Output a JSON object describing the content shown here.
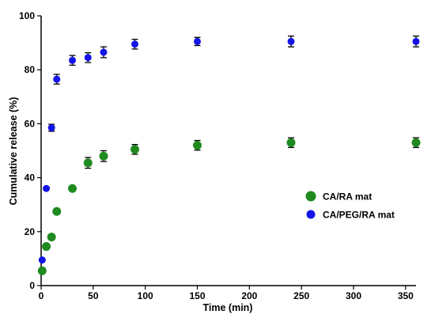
{
  "chart_data": {
    "type": "scatter",
    "xlabel": "Time (min)",
    "ylabel": "Cumulative release (%)",
    "xlim": [
      0,
      360
    ],
    "ylim": [
      0,
      100
    ],
    "x_ticks": [
      0,
      50,
      100,
      150,
      200,
      250,
      300,
      350
    ],
    "y_ticks": [
      0,
      20,
      40,
      60,
      80,
      100
    ],
    "x_tick_labels": [
      "0",
      "50",
      "100",
      "150",
      "200",
      "250",
      "300",
      "350"
    ],
    "y_tick_labels": [
      "0",
      "20",
      "40",
      "60",
      "80",
      "100"
    ],
    "grid": false,
    "legend_position": "right",
    "series": [
      {
        "name": "CA/RA mat",
        "color": "#1f8a1f",
        "x": [
          1,
          5,
          10,
          15,
          30,
          45,
          60,
          90,
          150,
          240,
          360
        ],
        "y": [
          5.5,
          14.5,
          18,
          27.5,
          36,
          45.5,
          48,
          50.5,
          52,
          53,
          53
        ],
        "err": [
          0,
          0,
          0,
          0,
          0,
          2,
          2,
          1.8,
          1.8,
          1.8,
          1.8
        ]
      },
      {
        "name": "CA/PEG/RA mat",
        "color": "#1414e6",
        "x": [
          1,
          5,
          10,
          15,
          30,
          45,
          60,
          90,
          150,
          240,
          360
        ],
        "y": [
          9.5,
          36,
          58.5,
          76.5,
          83.5,
          84.5,
          86.5,
          89.5,
          90.5,
          90.5,
          90.5
        ],
        "err": [
          0,
          0,
          1.3,
          1.8,
          1.8,
          1.8,
          2,
          1.8,
          1.5,
          2,
          2
        ]
      }
    ]
  }
}
